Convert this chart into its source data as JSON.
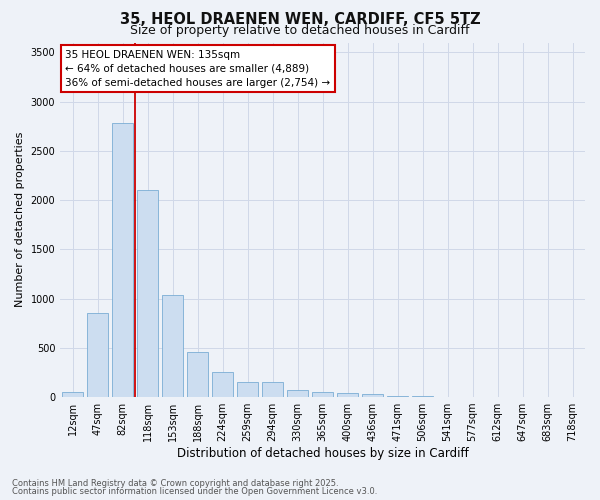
{
  "title_line1": "35, HEOL DRAENEN WEN, CARDIFF, CF5 5TZ",
  "title_line2": "Size of property relative to detached houses in Cardiff",
  "categories": [
    "12sqm",
    "47sqm",
    "82sqm",
    "118sqm",
    "153sqm",
    "188sqm",
    "224sqm",
    "259sqm",
    "294sqm",
    "330sqm",
    "365sqm",
    "400sqm",
    "436sqm",
    "471sqm",
    "506sqm",
    "541sqm",
    "577sqm",
    "612sqm",
    "647sqm",
    "683sqm",
    "718sqm"
  ],
  "values": [
    50,
    850,
    2780,
    2100,
    1040,
    460,
    250,
    155,
    155,
    70,
    55,
    45,
    30,
    15,
    8,
    5,
    3,
    2,
    1,
    1,
    0
  ],
  "bar_color": "#ccddf0",
  "bar_edge_color": "#7aadd4",
  "vline_color": "#cc0000",
  "vline_pos": 2.5,
  "ylabel": "Number of detached properties",
  "xlabel": "Distribution of detached houses by size in Cardiff",
  "ylim": [
    0,
    3600
  ],
  "yticks": [
    0,
    500,
    1000,
    1500,
    2000,
    2500,
    3000,
    3500
  ],
  "annotation_title": "35 HEOL DRAENEN WEN: 135sqm",
  "annotation_line2": "← 64% of detached houses are smaller (4,889)",
  "annotation_line3": "36% of semi-detached houses are larger (2,754) →",
  "annotation_box_color": "#cc0000",
  "footer_line1": "Contains HM Land Registry data © Crown copyright and database right 2025.",
  "footer_line2": "Contains public sector information licensed under the Open Government Licence v3.0.",
  "bg_color": "#eef2f8",
  "grid_color": "#d0d8e8",
  "title1_fontsize": 10.5,
  "title2_fontsize": 9,
  "ylabel_fontsize": 8,
  "xlabel_fontsize": 8.5,
  "tick_fontsize": 7,
  "annot_fontsize": 7.5,
  "footer_fontsize": 6
}
